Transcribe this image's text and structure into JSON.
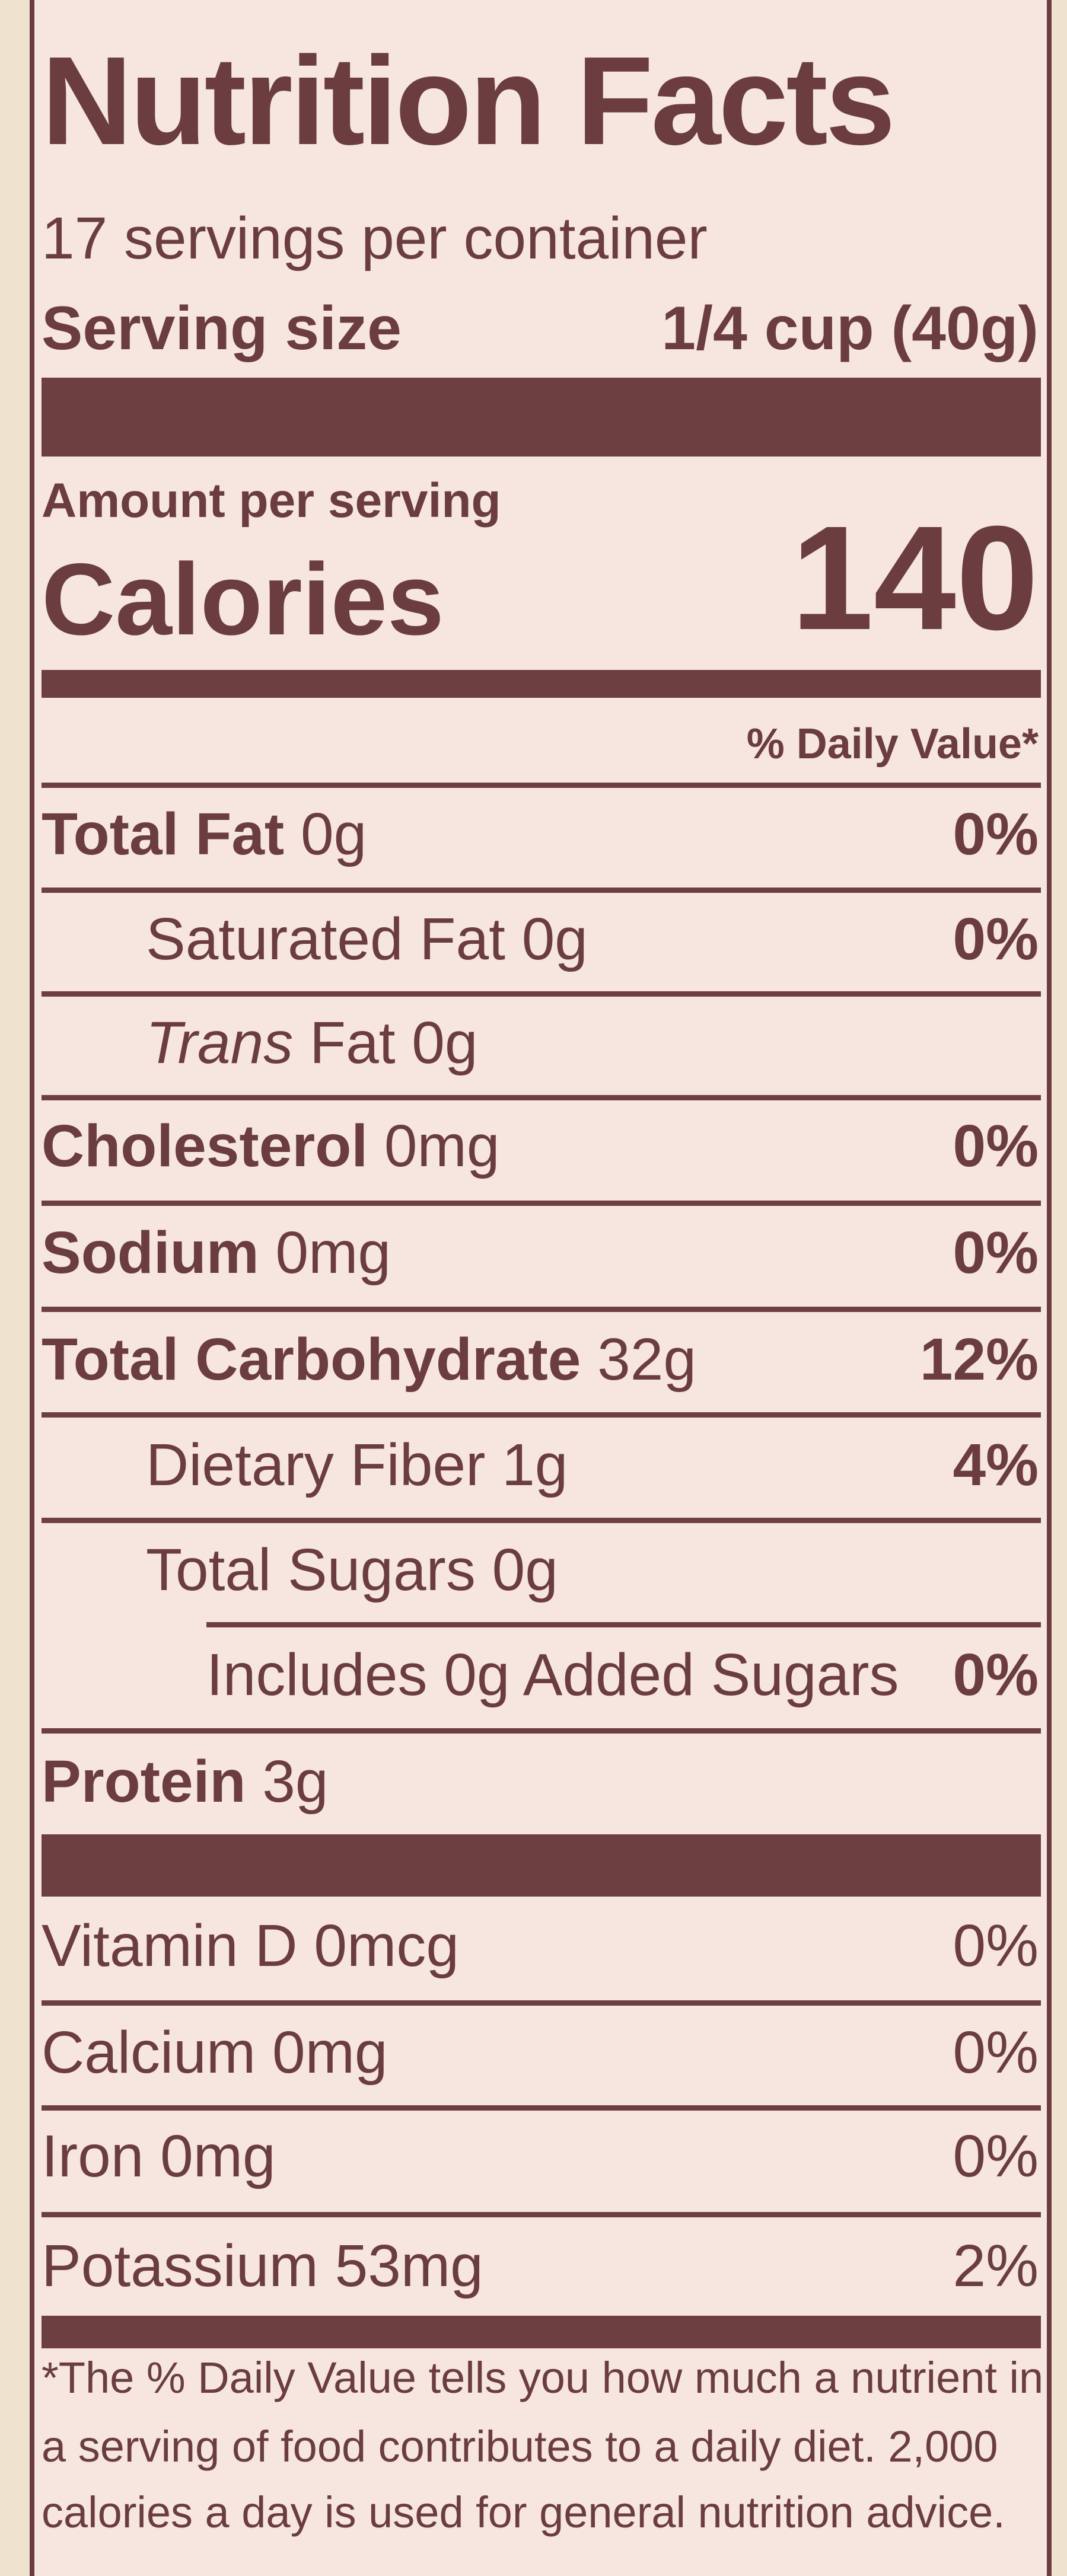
{
  "header": {
    "title": "Nutrition Facts",
    "servings": "17 servings per container",
    "serving_size_label": "Serving size",
    "serving_size_value": "1/4 cup (40g)"
  },
  "calories": {
    "amount_label": "Amount per serving",
    "label": "Calories",
    "value": "140"
  },
  "daily_value_header": "% Daily Value*",
  "nutrients": [
    {
      "name": "Total Fat",
      "amount": "0g",
      "dv": "0%"
    },
    {
      "name": "Saturated Fat 0g",
      "dv": "0%"
    },
    {
      "name_italic": "Trans",
      "name": "Fat 0g"
    },
    {
      "name": "Cholesterol",
      "amount": "0mg",
      "dv": "0%"
    },
    {
      "name": "Sodium",
      "amount": "0mg",
      "dv": "0%"
    },
    {
      "name": "Total Carbohydrate",
      "amount": "32g",
      "dv": "12%"
    },
    {
      "name": "Dietary Fiber 1g",
      "dv": "4%"
    },
    {
      "name": "Total Sugars 0g"
    },
    {
      "name": "Includes 0g Added Sugars",
      "dv": "0%"
    },
    {
      "name": "Protein",
      "amount": "3g"
    }
  ],
  "vitamins": [
    {
      "name": "Vitamin D 0mcg",
      "dv": "0%"
    },
    {
      "name": "Calcium 0mg",
      "dv": "0%"
    },
    {
      "name": "Iron 0mg",
      "dv": "0%"
    },
    {
      "name": "Potassium 53mg",
      "dv": "2%"
    }
  ],
  "footnote": [
    "*The % Daily Value tells you how much a nutrient in",
    "a serving of food contributes to a daily diet. 2,000",
    "calories a day is used for general nutrition advice."
  ]
}
